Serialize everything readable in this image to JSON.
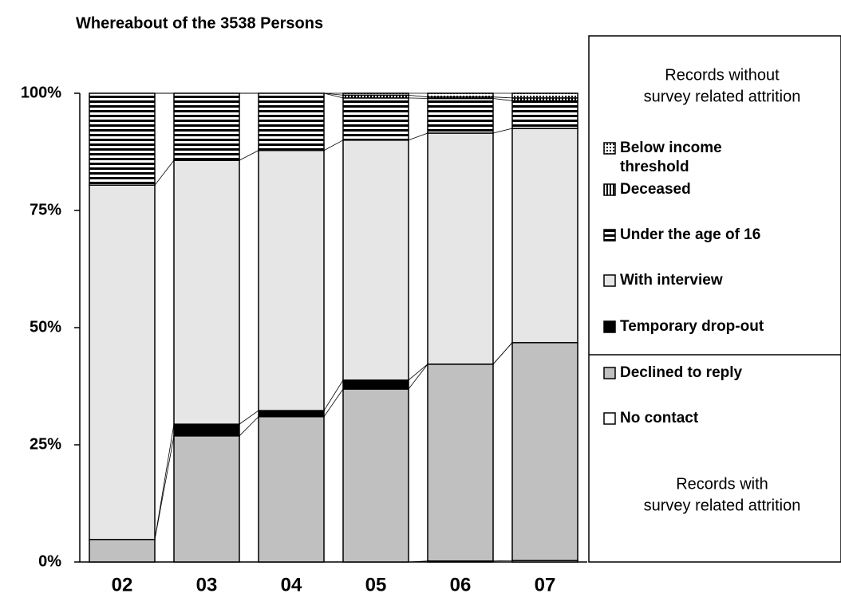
{
  "chart_data": {
    "type": "stacked_bar",
    "title": "Whereabout of the 3538 Persons",
    "categories": [
      "02",
      "03",
      "04",
      "05",
      "06",
      "07"
    ],
    "series": [
      {
        "name": "No contact",
        "color": "#ffffff",
        "pattern": "solid",
        "values": [
          0,
          0,
          0,
          0,
          0.2,
          0.3
        ]
      },
      {
        "name": "Declined to reply",
        "color": "#c0c0c0",
        "pattern": "solid",
        "values": [
          4.8,
          26.9,
          31.0,
          36.9,
          42.0,
          46.5
        ]
      },
      {
        "name": "Temporary drop-out",
        "color": "#000000",
        "pattern": "solid",
        "values": [
          0,
          2.5,
          1.3,
          1.9,
          0,
          0
        ]
      },
      {
        "name": "With interview",
        "color": "#e6e6e6",
        "pattern": "solid",
        "values": [
          75.6,
          56.3,
          55.5,
          51.2,
          49.3,
          45.7
        ]
      },
      {
        "name": "Under the age of 16",
        "color": "#000000",
        "pattern": "hstripes",
        "values": [
          19.6,
          14.3,
          12.2,
          9.0,
          7.4,
          5.9
        ]
      },
      {
        "name": "Deceased",
        "color": "#000000",
        "pattern": "vstripes",
        "values": [
          0,
          0,
          0,
          0.6,
          0.3,
          0.6
        ]
      },
      {
        "name": "Below income threshold",
        "color": "#808080",
        "pattern": "dots",
        "values": [
          0,
          0,
          0,
          0.4,
          0.8,
          1.0
        ]
      }
    ],
    "ylim": [
      0,
      100
    ],
    "yticks": [
      {
        "value": 0,
        "label": "0%"
      },
      {
        "value": 25,
        "label": "25%"
      },
      {
        "value": 50,
        "label": "50%"
      },
      {
        "value": 75,
        "label": "75%"
      },
      {
        "value": 100,
        "label": "100%"
      }
    ],
    "legend_top_note": [
      "Records without",
      "survey related attrition"
    ],
    "legend_bottom_note": [
      "Records with",
      "survey related attrition"
    ]
  }
}
